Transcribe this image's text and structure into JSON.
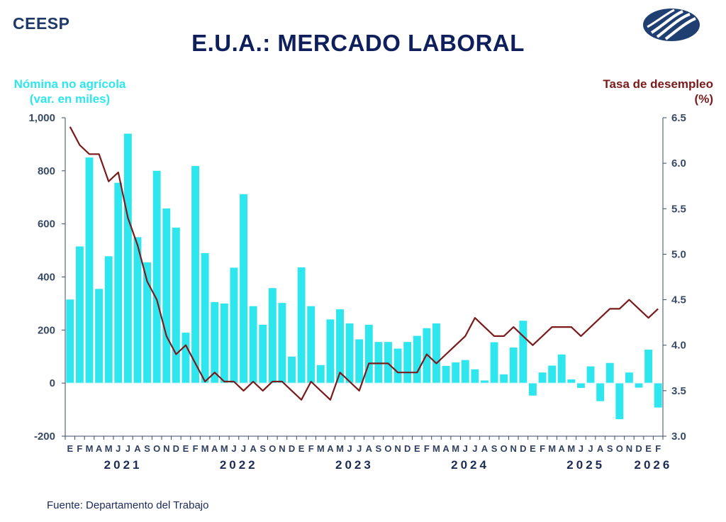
{
  "brand": "CEESP",
  "title": "E.U.A.: MERCADO LABORAL",
  "source": "Fuente: Departamento del Trabajo",
  "logo_icon": "ceesp-globe-icon",
  "colors": {
    "bars": "#2ee6ee",
    "line": "#7b1a1a",
    "title": "#0f1f5c",
    "axis": "#3a4a66"
  },
  "chart_data": {
    "type": "bar+line",
    "left_axis_label": [
      "Nómina no agrícola",
      "(var. en miles)"
    ],
    "right_axis_label": [
      "Tasa de desempleo",
      "(%)"
    ],
    "left_ylim": [
      -200,
      1000
    ],
    "left_ticks": [
      "-200",
      "0",
      "200",
      "400",
      "600",
      "800",
      "1,000"
    ],
    "right_ylim": [
      3.0,
      6.5
    ],
    "right_ticks": [
      "3.0",
      "3.5",
      "4.0",
      "4.5",
      "5.0",
      "5.5",
      "6.0",
      "6.5"
    ],
    "months": [
      "E",
      "F",
      "M",
      "A",
      "M",
      "J",
      "J",
      "A",
      "S",
      "O",
      "N",
      "D",
      "E",
      "F",
      "M",
      "A",
      "M",
      "J",
      "J",
      "A",
      "S",
      "O",
      "N",
      "D",
      "E",
      "F",
      "M",
      "A",
      "M",
      "J",
      "J",
      "A",
      "S",
      "O",
      "N",
      "D",
      "E",
      "F",
      "M",
      "A",
      "M",
      "J",
      "J",
      "A",
      "S",
      "O",
      "N",
      "D",
      "E",
      "F",
      "M",
      "A",
      "M",
      "J",
      "J",
      "A",
      "S",
      "O",
      "N",
      "D",
      "E",
      "F"
    ],
    "years": [
      {
        "label": "2021",
        "center_index": 5.5
      },
      {
        "label": "2022",
        "center_index": 17.5
      },
      {
        "label": "2023",
        "center_index": 29.5
      },
      {
        "label": "2024",
        "center_index": 41.5
      },
      {
        "label": "2025",
        "center_index": 53.5
      },
      {
        "label": "2026",
        "center_index": 60.5
      }
    ],
    "series": [
      {
        "name": "Nómina no agrícola",
        "type": "bar",
        "axis": "left",
        "values": [
          315,
          515,
          850,
          355,
          478,
          755,
          940,
          550,
          455,
          800,
          658,
          586,
          190,
          818,
          490,
          305,
          300,
          435,
          712,
          290,
          220,
          358,
          302,
          100,
          436,
          290,
          68,
          240,
          278,
          225,
          165,
          220,
          155,
          155,
          130,
          155,
          178,
          207,
          225,
          65,
          78,
          87,
          52,
          10,
          154,
          33,
          134,
          235,
          -47,
          40,
          66,
          108,
          14,
          -18,
          63,
          -68,
          76,
          -136,
          40,
          -17,
          126,
          -92
        ]
      },
      {
        "name": "Tasa de desempleo",
        "type": "line",
        "axis": "right",
        "values": [
          6.4,
          6.2,
          6.1,
          6.1,
          5.8,
          5.9,
          5.4,
          5.1,
          4.7,
          4.5,
          4.1,
          3.9,
          4.0,
          3.8,
          3.6,
          3.7,
          3.6,
          3.6,
          3.5,
          3.6,
          3.5,
          3.6,
          3.6,
          3.5,
          3.4,
          3.6,
          3.5,
          3.4,
          3.7,
          3.6,
          3.5,
          3.8,
          3.8,
          3.8,
          3.7,
          3.7,
          3.7,
          3.9,
          3.8,
          3.9,
          4.0,
          4.1,
          4.3,
          4.2,
          4.1,
          4.1,
          4.2,
          4.1,
          4.0,
          4.1,
          4.2,
          4.2,
          4.2,
          4.1,
          4.2,
          4.3,
          4.4,
          4.4,
          4.5,
          4.4,
          4.3,
          4.4
        ]
      }
    ]
  }
}
